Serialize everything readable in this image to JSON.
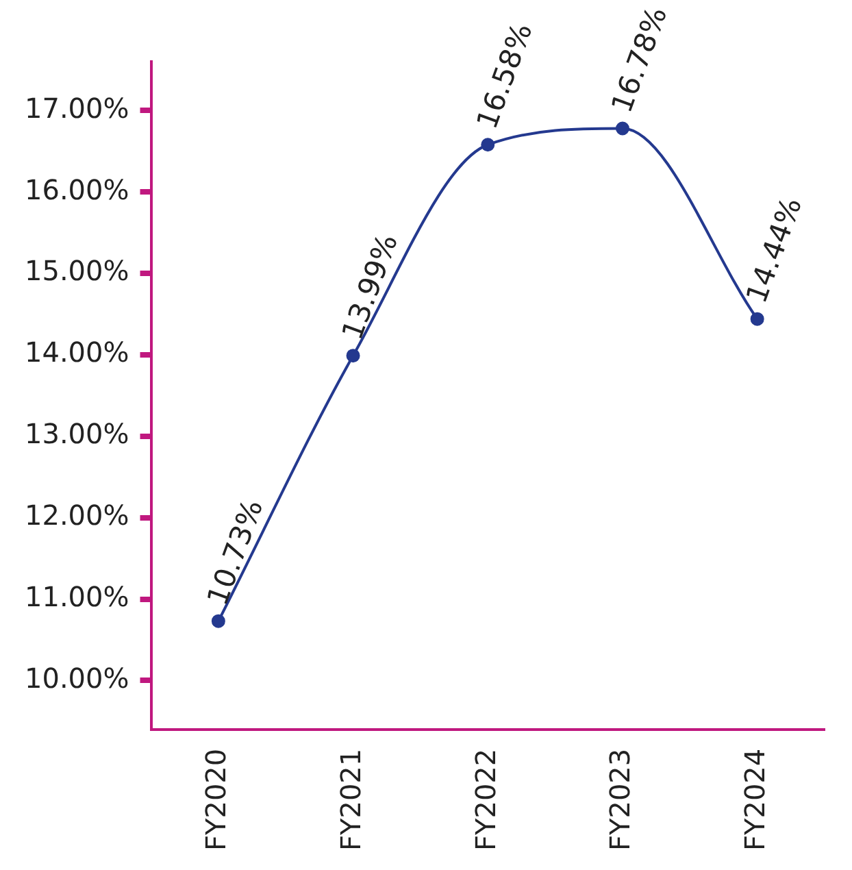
{
  "chart_data": {
    "type": "line",
    "categories": [
      "FY2020",
      "FY2021",
      "FY2022",
      "FY2023",
      "FY2024"
    ],
    "series": [
      {
        "color": "#24398f",
        "values": [
          10.73,
          13.99,
          16.58,
          16.78,
          14.44
        ],
        "value_labels": [
          "10.73%",
          "13.99%",
          "16.58%",
          "16.78%",
          "14.44%"
        ]
      }
    ],
    "ylim": [
      9.4,
      17.6
    ],
    "yticks": [
      {
        "value": 10,
        "label": "10.00%"
      },
      {
        "value": 11,
        "label": "11.00%"
      },
      {
        "value": 12,
        "label": "12.00%"
      },
      {
        "value": 13,
        "label": "13.00%"
      },
      {
        "value": 14,
        "label": "14.00%"
      },
      {
        "value": 15,
        "label": "15.00%"
      },
      {
        "value": 16,
        "label": "16.00%"
      },
      {
        "value": 17,
        "label": "17.00%"
      }
    ],
    "grid": false,
    "legend": false,
    "marker": "circle",
    "line_style": "solid"
  }
}
